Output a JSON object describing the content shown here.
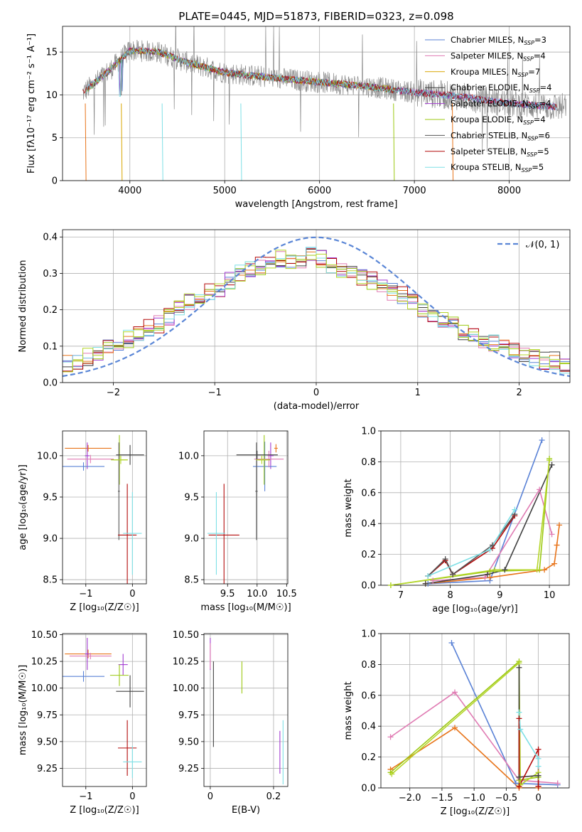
{
  "title": "PLATE=0445, MJD=51873, FIBERID=0323, z=0.098",
  "colors": {
    "chabrier_miles": "#5a82d6",
    "salpeter_miles": "#e07bb3",
    "kroupa_miles": "#d9a600",
    "chabrier_elodie": "#404040",
    "salpeter_elodie": "#a23bd1",
    "kroupa_elodie": "#9cc913",
    "chabrier_stelib": "#555555",
    "salpeter_stelib": "#b40b0b",
    "kroupa_stelib": "#7ee0e6",
    "orange": "#e8741a",
    "lime": "#b5d62a"
  },
  "chart_data": [
    {
      "id": "spectrum",
      "type": "line",
      "title": "PLATE=0445, MJD=51873, FIBERID=0323, z=0.098",
      "xlabel": "wavelength [Angstrom, rest frame]",
      "ylabel": "Flux [fλ10⁻¹⁷ erg cm⁻² s⁻¹ A⁻¹]",
      "xlim": [
        3290,
        8640
      ],
      "ylim": [
        0,
        18
      ],
      "xticks": [
        4000,
        5000,
        6000,
        7000,
        8000
      ],
      "yticks": [
        0,
        5,
        10,
        15
      ],
      "legend_position": "upper-right",
      "series": [
        {
          "name": "Chabrier MILES, Nₛₛₚ=3",
          "color_key": "chabrier_miles"
        },
        {
          "name": "Salpeter MILES, Nₛₛₚ=4",
          "color_key": "salpeter_miles"
        },
        {
          "name": "Kroupa MILES, Nₛₛₚ=7",
          "color_key": "kroupa_miles"
        },
        {
          "name": "Chabrier ELODIE, Nₛₛₚ=4",
          "color_key": "chabrier_elodie"
        },
        {
          "name": "Salpeter ELODIE, Nₛₛₚ=4",
          "color_key": "salpeter_elodie"
        },
        {
          "name": "Kroupa ELODIE, Nₛₛₚ=4",
          "color_key": "kroupa_elodie"
        },
        {
          "name": "Chabrier STELIB, Nₛₛₚ=6",
          "color_key": "chabrier_stelib"
        },
        {
          "name": "Salpeter STELIB, Nₛₛₚ=5",
          "color_key": "salpeter_stelib"
        },
        {
          "name": "Kroupa STELIB, Nₛₛₚ=5",
          "color_key": "kroupa_stelib"
        }
      ],
      "continuum": {
        "x": [
          3500,
          3800,
          4000,
          4300,
          4600,
          5000,
          5500,
          6000,
          6500,
          7000,
          7500,
          8000,
          8500
        ],
        "y": [
          10.2,
          13.0,
          15.2,
          15.0,
          13.8,
          12.6,
          12.0,
          11.5,
          11.0,
          10.3,
          9.8,
          9.0,
          8.6
        ]
      }
    },
    {
      "id": "residuals",
      "type": "histogram",
      "xlabel": "(data-model)/error",
      "ylabel": "Normed distribution",
      "xlim": [
        -2.5,
        2.5
      ],
      "ylim": [
        0,
        0.42
      ],
      "xticks": [
        -2,
        -1,
        0,
        1,
        2
      ],
      "yticks": [
        0.0,
        0.1,
        0.2,
        0.3,
        0.4
      ],
      "legend_label": "𝒩(0, 1)",
      "legend_position": "upper-right",
      "bin_width": 0.1,
      "base": [
        0.05,
        0.06,
        0.07,
        0.08,
        0.1,
        0.11,
        0.12,
        0.13,
        0.15,
        0.16,
        0.18,
        0.2,
        0.22,
        0.24,
        0.25,
        0.26,
        0.28,
        0.3,
        0.31,
        0.32,
        0.33,
        0.34,
        0.33,
        0.33,
        0.35,
        0.34,
        0.32,
        0.31,
        0.3,
        0.29,
        0.28,
        0.27,
        0.25,
        0.24,
        0.22,
        0.2,
        0.18,
        0.17,
        0.16,
        0.14,
        0.13,
        0.12,
        0.11,
        0.1,
        0.09,
        0.08,
        0.07,
        0.06,
        0.06,
        0.05
      ]
    },
    {
      "id": "age_vs_Z",
      "type": "errorbar",
      "xlabel": "Z [log₁₀(Z/Z☉)]",
      "ylabel": "age  [log₁₀(age/yr)]",
      "xlim": [
        -1.5,
        0.3
      ],
      "ylim": [
        8.45,
        10.3
      ],
      "xticks": [
        -1,
        0
      ],
      "yticks": [
        8.5,
        9.0,
        9.5,
        10.0
      ],
      "points": [
        {
          "color_key": "orange",
          "x": -0.95,
          "y": 10.09,
          "xerr": 0.5,
          "yerr": 0.04
        },
        {
          "color_key": "salpeter_elodie",
          "x": -0.97,
          "y": 10.0,
          "xerr": 0.05,
          "yerr": 0.16
        },
        {
          "color_key": "chabrier_miles",
          "x": -1.05,
          "y": 9.87,
          "xerr": 0.45,
          "yerr": 0.05
        },
        {
          "color_key": "salpeter_miles",
          "x": -0.9,
          "y": 9.96,
          "xerr": 0.5,
          "yerr": 0.05
        },
        {
          "color_key": "kroupa_elodie",
          "x": -0.28,
          "y": 9.95,
          "xerr": 0.18,
          "yerr": 0.3
        },
        {
          "color_key": "chabrier_elodie",
          "x": -0.05,
          "y": 10.01,
          "xerr": 0.3,
          "yerr": 0.12
        },
        {
          "color_key": "chabrier_stelib",
          "x": -0.29,
          "y": 9.57,
          "xerr": 0.02,
          "yerr": 0.59
        },
        {
          "color_key": "salpeter_stelib",
          "x": -0.11,
          "y": 9.04,
          "xerr": 0.2,
          "yerr": 0.62
        },
        {
          "color_key": "kroupa_stelib",
          "x": 0.0,
          "y": 9.06,
          "xerr": 0.2,
          "yerr": 0.5
        },
        {
          "color_key": "lime",
          "x": -0.25,
          "y": 9.95,
          "xerr": 0.15,
          "yerr": 0.05
        }
      ]
    },
    {
      "id": "age_vs_mass",
      "type": "errorbar",
      "xlabel": "mass [log₁₀(M/M☉)]",
      "ylabel": "",
      "xlim": [
        9.1,
        10.52
      ],
      "ylim": [
        8.45,
        10.3
      ],
      "xticks": [
        9.5,
        10.0,
        10.5
      ],
      "yticks": [
        8.5,
        9.0,
        9.5,
        10.0
      ],
      "points": [
        {
          "color_key": "orange",
          "x": 10.32,
          "y": 10.09,
          "xerr": 0.03,
          "yerr": 0.05
        },
        {
          "color_key": "salpeter_elodie",
          "x": 10.23,
          "y": 10.0,
          "xerr": 0.05,
          "yerr": 0.16
        },
        {
          "color_key": "chabrier_miles",
          "x": 10.13,
          "y": 9.87,
          "xerr": 0.2,
          "yerr": 0.3
        },
        {
          "color_key": "salpeter_miles",
          "x": 10.2,
          "y": 9.96,
          "xerr": 0.25,
          "yerr": 0.1
        },
        {
          "color_key": "kroupa_elodie",
          "x": 10.12,
          "y": 9.95,
          "xerr": 0.1,
          "yerr": 0.3
        },
        {
          "color_key": "chabrier_elodie",
          "x": 10.0,
          "y": 10.01,
          "xerr": 0.35,
          "yerr": 0.05
        },
        {
          "color_key": "chabrier_stelib",
          "x": 9.99,
          "y": 9.57,
          "xerr": 0.02,
          "yerr": 0.59
        },
        {
          "color_key": "salpeter_stelib",
          "x": 9.44,
          "y": 9.04,
          "xerr": 0.26,
          "yerr": 0.62
        },
        {
          "color_key": "kroupa_stelib",
          "x": 9.31,
          "y": 9.06,
          "xerr": 0.15,
          "yerr": 0.5
        },
        {
          "color_key": "lime",
          "x": 10.08,
          "y": 9.95,
          "xerr": 0.1,
          "yerr": 0.05
        }
      ]
    },
    {
      "id": "weight_vs_age",
      "type": "line",
      "xlabel": "age  [log₁₀(age/yr)]",
      "ylabel": "mass weight",
      "xlim": [
        6.6,
        10.4
      ],
      "ylim": [
        0,
        1.0
      ],
      "xticks": [
        7,
        8,
        9,
        10
      ],
      "yticks": [
        0.0,
        0.2,
        0.4,
        0.6,
        0.8,
        1.0
      ],
      "series": [
        {
          "color_key": "chabrier_miles",
          "x": [
            7.55,
            8.8,
            9.85
          ],
          "y": [
            0.01,
            0.03,
            0.94
          ]
        },
        {
          "color_key": "salpeter_miles",
          "x": [
            7.65,
            8.7,
            9.8,
            10.05
          ],
          "y": [
            0.03,
            0.05,
            0.62,
            0.33
          ]
        },
        {
          "color_key": "orange",
          "x": [
            7.5,
            8.8,
            9.9,
            10.1,
            10.15,
            10.2
          ],
          "y": [
            0.01,
            0.05,
            0.1,
            0.14,
            0.26,
            0.39
          ]
        },
        {
          "color_key": "chabrier_elodie",
          "x": [
            7.5,
            8.75,
            9.1,
            10.05
          ],
          "y": [
            0.01,
            0.07,
            0.1,
            0.78
          ]
        },
        {
          "color_key": "kroupa_elodie",
          "x": [
            6.8,
            8.8,
            9.8,
            10.0
          ],
          "y": [
            0.0,
            0.09,
            0.1,
            0.82
          ]
        },
        {
          "color_key": "lime",
          "x": [
            6.8,
            8.9,
            9.75,
            10.0
          ],
          "y": [
            0.0,
            0.1,
            0.1,
            0.81
          ]
        },
        {
          "color_key": "salpeter_stelib",
          "x": [
            7.55,
            7.9,
            8.05,
            8.85,
            9.3
          ],
          "y": [
            0.06,
            0.16,
            0.07,
            0.24,
            0.45
          ]
        },
        {
          "color_key": "chabrier_stelib",
          "x": [
            7.55,
            7.9,
            8.05,
            8.85,
            9.3
          ],
          "y": [
            0.06,
            0.17,
            0.07,
            0.26,
            0.46
          ]
        },
        {
          "color_key": "kroupa_stelib",
          "x": [
            7.55,
            8.8,
            9.3
          ],
          "y": [
            0.06,
            0.23,
            0.49
          ]
        }
      ]
    },
    {
      "id": "mass_vs_Z",
      "type": "errorbar",
      "xlabel": "Z [log₁₀(Z/Z☉)]",
      "ylabel": "mass [log₁₀(M/M☉)]",
      "xlim": [
        -1.5,
        0.3
      ],
      "ylim": [
        9.08,
        10.51
      ],
      "xticks": [
        -1,
        0
      ],
      "yticks": [
        9.25,
        9.5,
        9.75,
        10.0,
        10.25,
        10.5
      ],
      "points": [
        {
          "color_key": "orange",
          "x": -0.95,
          "y": 10.32,
          "xerr": 0.5,
          "yerr": 0.04
        },
        {
          "color_key": "salpeter_elodie",
          "x": -0.97,
          "y": 10.32,
          "xerr": 0.05,
          "yerr": 0.15
        },
        {
          "color_key": "salpeter_miles",
          "x": -0.9,
          "y": 10.3,
          "xerr": 0.45,
          "yerr": 0.03
        },
        {
          "color_key": "chabrier_miles",
          "x": -1.05,
          "y": 10.11,
          "xerr": 0.45,
          "yerr": 0.05
        },
        {
          "color_key": "salpeter_elodie",
          "x": -0.2,
          "y": 10.22,
          "xerr": 0.1,
          "yerr": 0.1
        },
        {
          "color_key": "kroupa_elodie",
          "x": -0.28,
          "y": 10.12,
          "xerr": 0.2,
          "yerr": 0.1
        },
        {
          "color_key": "chabrier_elodie",
          "x": -0.05,
          "y": 9.97,
          "xerr": 0.3,
          "yerr": 0.15
        },
        {
          "color_key": "salpeter_stelib",
          "x": -0.11,
          "y": 9.44,
          "xerr": 0.2,
          "yerr": 0.26
        },
        {
          "color_key": "kroupa_stelib",
          "x": 0.0,
          "y": 9.31,
          "xerr": 0.2,
          "yerr": 0.15
        }
      ]
    },
    {
      "id": "mass_vs_ebv",
      "type": "errorbar",
      "xlabel": "E(B-V)",
      "ylabel": "",
      "xlim": [
        -0.02,
        0.245
      ],
      "ylim": [
        9.08,
        10.51
      ],
      "xticks": [
        0.0,
        0.2
      ],
      "yticks": [
        9.25,
        9.5,
        9.75,
        10.0,
        10.25,
        10.5
      ],
      "points": [
        {
          "color_key": "salpeter_elodie",
          "x": 0.0,
          "y": 10.32,
          "xerr": 0.0,
          "yerr": 0.15
        },
        {
          "color_key": "salpeter_miles",
          "x": 0.0,
          "y": 10.3,
          "xerr": 0.0,
          "yerr": 0.12
        },
        {
          "color_key": "chabrier_elodie",
          "x": 0.01,
          "y": 9.85,
          "xerr": 0.0,
          "yerr": 0.4
        },
        {
          "color_key": "kroupa_elodie",
          "x": 0.1,
          "y": 10.1,
          "xerr": 0.0,
          "yerr": 0.15
        },
        {
          "color_key": "salpeter_elodie",
          "x": 0.22,
          "y": 9.4,
          "xerr": 0.0,
          "yerr": 0.2
        },
        {
          "color_key": "kroupa_stelib",
          "x": 0.23,
          "y": 9.4,
          "xerr": 0.0,
          "yerr": 0.3
        }
      ]
    },
    {
      "id": "weight_vs_Z",
      "type": "line",
      "xlabel": "Z [log₁₀(Z/Z☉)]",
      "ylabel": "mass weight",
      "xlim": [
        -2.45,
        0.48
      ],
      "ylim": [
        0,
        1.0
      ],
      "xticks": [
        -2.0,
        -1.5,
        -1.0,
        -0.5,
        0.0
      ],
      "yticks": [
        0.0,
        0.2,
        0.4,
        0.6,
        0.8,
        1.0
      ],
      "series": [
        {
          "color_key": "chabrier_miles",
          "x": [
            -1.35,
            -0.35,
            0.3
          ],
          "y": [
            0.94,
            0.03,
            0.02
          ]
        },
        {
          "color_key": "salpeter_miles",
          "x": [
            -2.3,
            -1.3,
            -0.3,
            0.3
          ],
          "y": [
            0.33,
            0.62,
            0.05,
            0.03
          ]
        },
        {
          "color_key": "orange",
          "x": [
            -2.3,
            -1.3,
            -0.3,
            0.0
          ],
          "y": [
            0.12,
            0.39,
            0.0,
            0.0
          ]
        },
        {
          "color_key": "kroupa_elodie",
          "x": [
            -2.3,
            -0.3,
            -0.3,
            0.0
          ],
          "y": [
            0.1,
            0.82,
            0.05,
            0.07
          ]
        },
        {
          "color_key": "lime",
          "x": [
            -2.28,
            -0.3,
            -0.28,
            0.0
          ],
          "y": [
            0.09,
            0.81,
            0.02,
            0.1
          ]
        },
        {
          "color_key": "chabrier_elodie",
          "x": [
            -0.3,
            -0.3,
            0.0,
            0.0
          ],
          "y": [
            0.78,
            0.07,
            0.08,
            0.01
          ]
        },
        {
          "color_key": "salpeter_stelib",
          "x": [
            -0.3,
            -0.3,
            0.0,
            0.0
          ],
          "y": [
            0.45,
            0.01,
            0.25,
            0.01
          ]
        },
        {
          "color_key": "kroupa_stelib",
          "x": [
            -0.3,
            -0.28,
            0.0,
            0.0
          ],
          "y": [
            0.49,
            0.38,
            0.19,
            0.14
          ]
        }
      ]
    }
  ]
}
